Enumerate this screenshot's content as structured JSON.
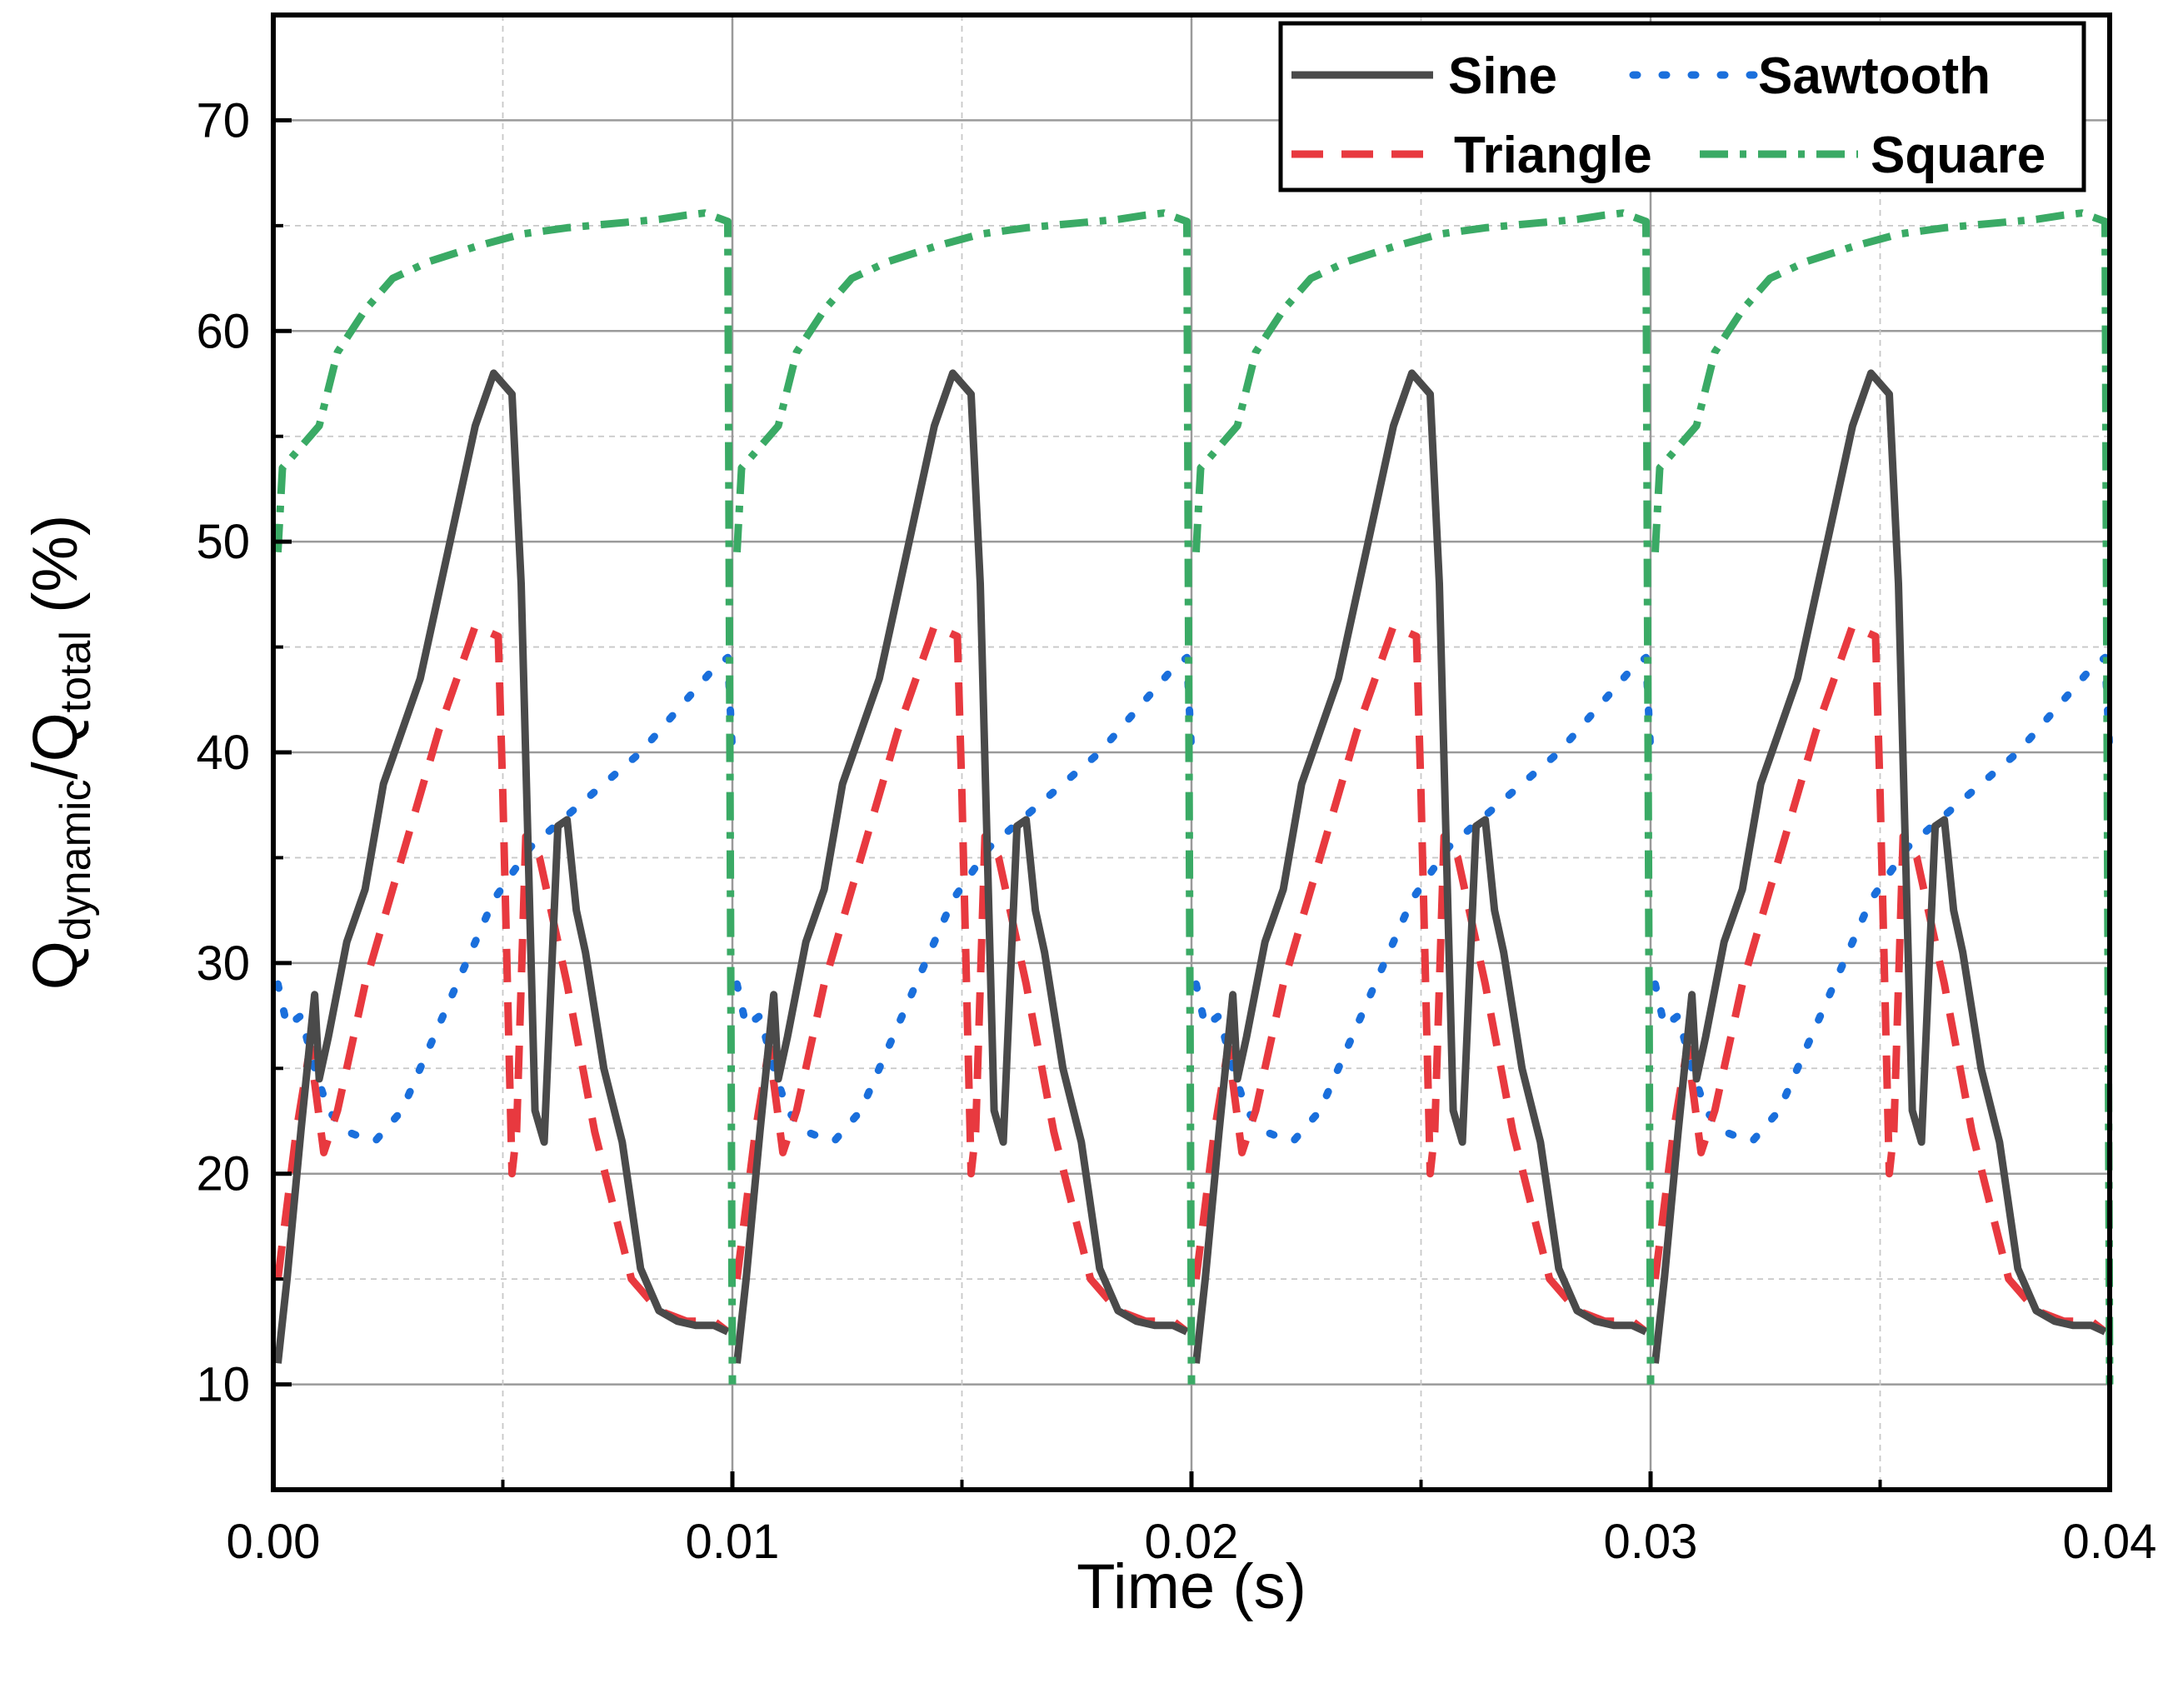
{
  "chart_data": {
    "type": "line",
    "title": "",
    "xlabel": "Time (s)",
    "ylabel": {
      "main": "Q",
      "sub1": "dynamic",
      "sep": "/Q",
      "sub2": "total",
      "unit": " (%)"
    },
    "xlim": [
      0,
      0.04
    ],
    "ylim": [
      5,
      75
    ],
    "xticks": [
      0.0,
      0.01,
      0.02,
      0.03,
      0.04
    ],
    "xtick_labels": [
      "0.00",
      "0.01",
      "0.02",
      "0.03",
      "0.04"
    ],
    "yticks": [
      10,
      20,
      30,
      40,
      50,
      60,
      70
    ],
    "ytick_labels": [
      "10",
      "20",
      "30",
      "40",
      "50",
      "60",
      "70"
    ],
    "period": 0.01,
    "cycles": 4,
    "grid": true,
    "legend_position": "top-right",
    "series": [
      {
        "name": "Sine",
        "style": "solid",
        "color": "#4a4a4a",
        "x": [
          0.0001,
          0.0003,
          0.0006,
          0.0009,
          0.001,
          0.0012,
          0.0016,
          0.002,
          0.0024,
          0.0028,
          0.0032,
          0.0038,
          0.0044,
          0.0048,
          0.0052,
          0.0054,
          0.0057,
          0.0059,
          0.0062,
          0.0064,
          0.0066,
          0.0068,
          0.0072,
          0.0076,
          0.008,
          0.0084,
          0.0088,
          0.0092,
          0.0096,
          0.0099
        ],
        "y": [
          11,
          15,
          22,
          28.5,
          24.5,
          26.5,
          31,
          33.5,
          38.5,
          41,
          43.5,
          49.5,
          55.5,
          58,
          57,
          48,
          23,
          21.5,
          36.5,
          36.8,
          32.5,
          30.5,
          25,
          21.5,
          15.5,
          13.5,
          13,
          12.8,
          12.8,
          12.5
        ],
        "note": "one period; repeats every 0.01 s"
      },
      {
        "name": "Triangle",
        "style": "dashed",
        "color": "#e8393f",
        "x": [
          0.0001,
          0.0005,
          0.0008,
          0.0011,
          0.0014,
          0.002,
          0.0028,
          0.0036,
          0.0044,
          0.0049,
          0.005,
          0.0052,
          0.0053,
          0.0055,
          0.0058,
          0.0064,
          0.007,
          0.0078,
          0.0084,
          0.009,
          0.0096,
          0.0099
        ],
        "y": [
          15,
          22,
          26,
          21,
          23,
          29,
          35,
          41,
          46,
          45.5,
          38,
          20,
          22,
          36,
          35,
          29,
          22,
          15,
          13.5,
          13,
          13,
          12.5
        ]
      },
      {
        "name": "Sawtooth",
        "style": "dotted",
        "color": "#1a6fdc",
        "x": [
          0.0001,
          0.0003,
          0.0006,
          0.0009,
          0.0012,
          0.0016,
          0.0022,
          0.0028,
          0.0034,
          0.004,
          0.0048,
          0.0056,
          0.0064,
          0.0072,
          0.008,
          0.0088,
          0.0096,
          0.0099,
          0.01
        ],
        "y": [
          29,
          27,
          27.5,
          25,
          23,
          22,
          21.5,
          23,
          26,
          29,
          33,
          35.5,
          37,
          38.5,
          40,
          42,
          44,
          44.5,
          40
        ]
      },
      {
        "name": "Square",
        "style": "dash-dot",
        "color": "#3aaa65",
        "x": [
          0.0001,
          0.0002,
          0.0006,
          0.001,
          0.0014,
          0.002,
          0.0026,
          0.0034,
          0.0044,
          0.0054,
          0.0064,
          0.0074,
          0.0084,
          0.009,
          0.0094,
          0.0099,
          0.01
        ],
        "y": [
          49.5,
          53.5,
          54.5,
          55.5,
          59,
          61,
          62.5,
          63.3,
          64,
          64.6,
          64.9,
          65.1,
          65.3,
          65.5,
          65.6,
          65.2,
          10
        ]
      }
    ]
  }
}
